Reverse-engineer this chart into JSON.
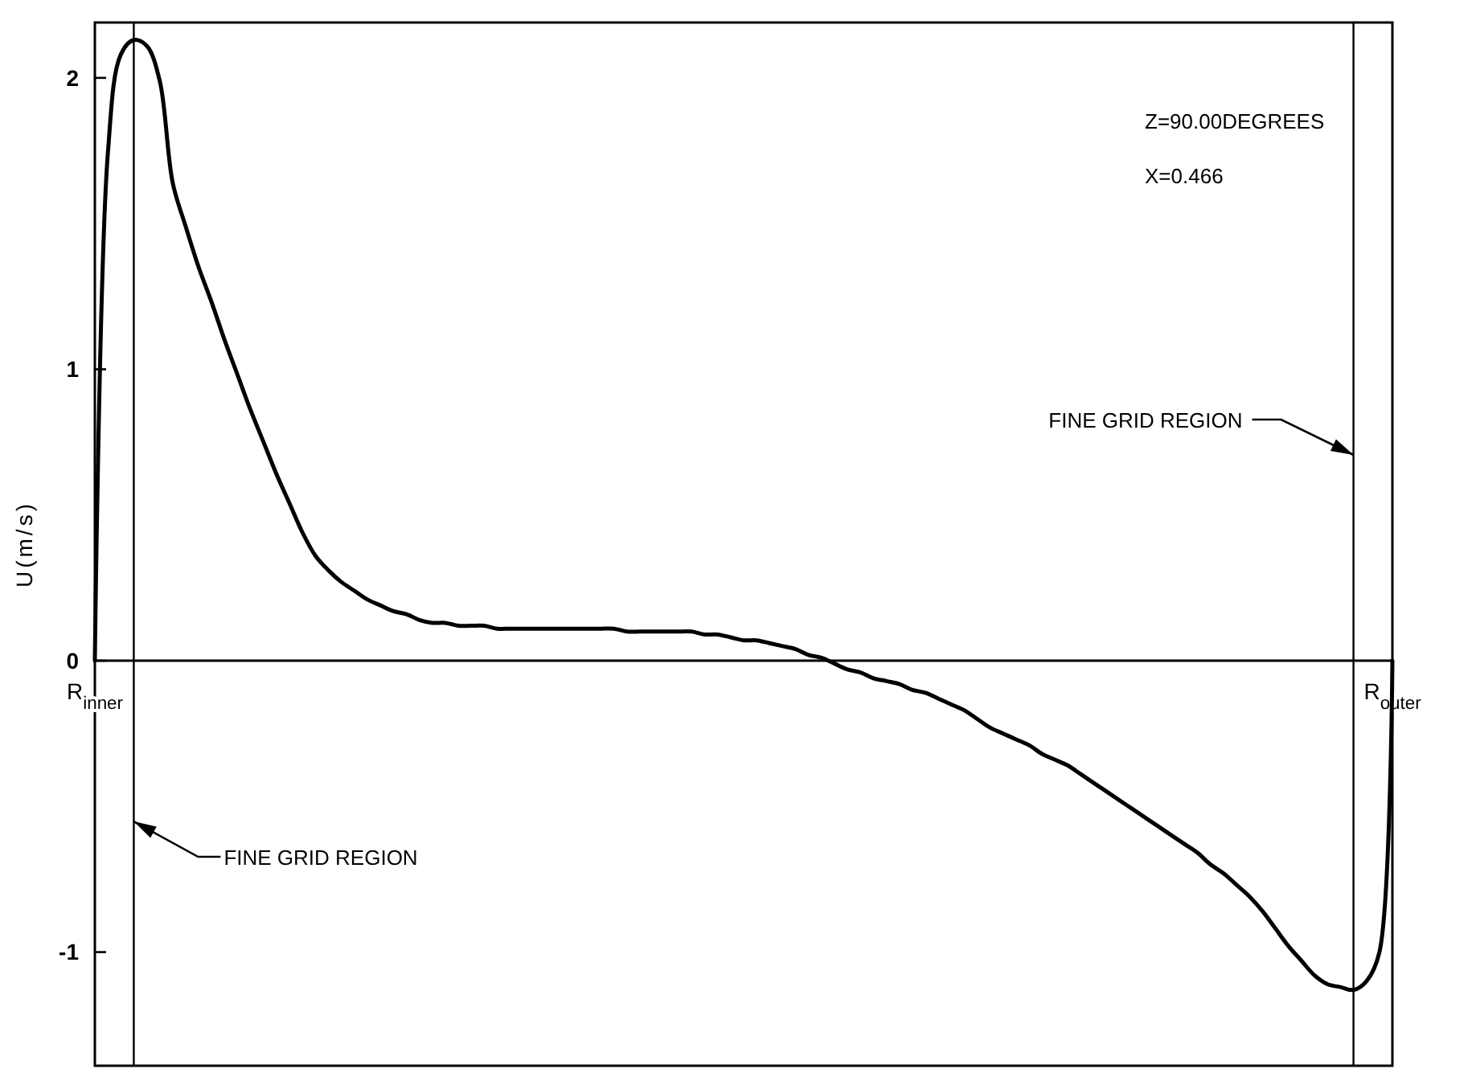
{
  "chart_data": {
    "type": "line",
    "ylabel": "U(m/s)",
    "categories": [
      "R$_{inner}$",
      null,
      null,
      null,
      null,
      null,
      null,
      null,
      null,
      null,
      null,
      null,
      null,
      null,
      null,
      null,
      null,
      null,
      null,
      null,
      null,
      null,
      null,
      null,
      null,
      null,
      null,
      null,
      null,
      null,
      null,
      null,
      null,
      null,
      null,
      null,
      null,
      null,
      null,
      null,
      null,
      null,
      null,
      null,
      null,
      null,
      null,
      null,
      null,
      null,
      null,
      null,
      null,
      null,
      null,
      null,
      null,
      null,
      null,
      null,
      null,
      null,
      null,
      null,
      null,
      null,
      null,
      null,
      null,
      null,
      null,
      null,
      null,
      null,
      null,
      null,
      null,
      null,
      null,
      null,
      null,
      null,
      null,
      null,
      null,
      null,
      null,
      null,
      null,
      null,
      null,
      null,
      null,
      null,
      null,
      null,
      null,
      null,
      null,
      null,
      "R$_{outer}$"
    ],
    "ylim": [
      -1.39,
      2.19
    ],
    "yticks": [
      -1,
      0,
      1,
      2
    ],
    "grid": false,
    "marker": "none",
    "line_style": "solid",
    "annotations": [
      "Z=90.00DEGREES",
      "X=0.466",
      "FINE GRID REGION",
      "FINE GRID REGION"
    ],
    "series": [
      {
        "color": "#000000",
        "values": [
          0,
          1.74,
          2.08,
          2.13,
          2.11,
          1.99,
          1.64,
          1.49,
          1.35,
          1.23,
          1.1,
          0.98,
          0.86,
          0.75,
          0.64,
          0.54,
          0.44,
          0.36,
          0.31,
          0.27,
          0.24,
          0.21,
          0.19,
          0.17,
          0.16,
          0.14,
          0.13,
          0.13,
          0.12,
          0.12,
          0.12,
          0.11,
          0.11,
          0.11,
          0.11,
          0.11,
          0.11,
          0.11,
          0.11,
          0.11,
          0.11,
          0.1,
          0.1,
          0.1,
          0.1,
          0.1,
          0.1,
          0.09,
          0.09,
          0.08,
          0.07,
          0.07,
          0.06,
          0.05,
          0.04,
          0.02,
          0.01,
          -0.01,
          -0.03,
          -0.04,
          -0.06,
          -0.07,
          -0.08,
          -0.1,
          -0.11,
          -0.13,
          -0.15,
          -0.17,
          -0.2,
          -0.23,
          -0.25,
          -0.27,
          -0.29,
          -0.32,
          -0.34,
          -0.36,
          -0.39,
          -0.42,
          -0.45,
          -0.48,
          -0.51,
          -0.54,
          -0.57,
          -0.6,
          -0.63,
          -0.66,
          -0.7,
          -0.73,
          -0.77,
          -0.81,
          -0.86,
          -0.92,
          -0.98,
          -1.03,
          -1.08,
          -1.11,
          -1.12,
          -1.13,
          -1.1,
          -1.0,
          0
        ]
      }
    ]
  }
}
